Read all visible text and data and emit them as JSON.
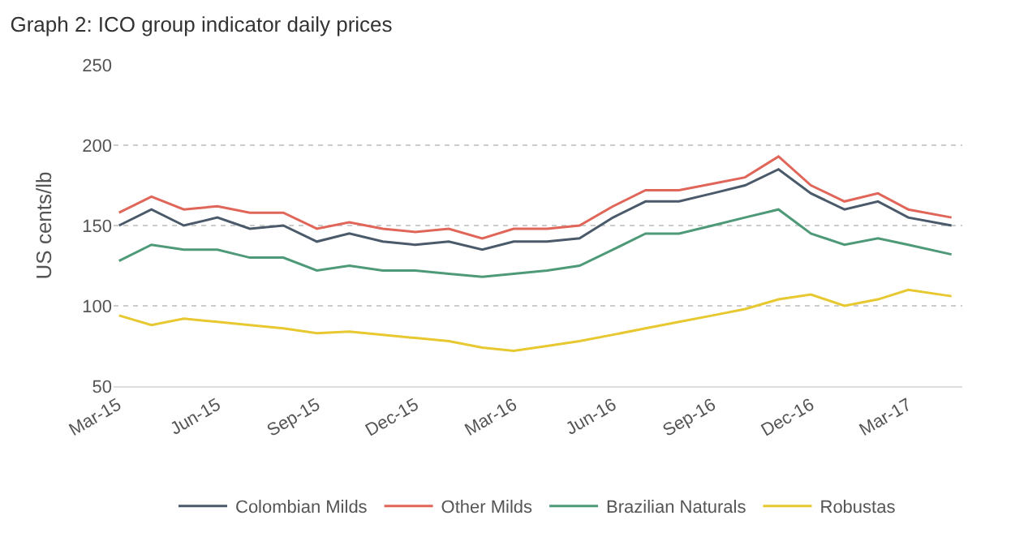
{
  "chart_data": {
    "type": "line",
    "title": "Graph 2: ICO group indicator daily prices",
    "ylabel": "US cents/lb",
    "x": [
      "2015-03-02",
      "2015-04-01",
      "2015-05-01",
      "2015-06-01",
      "2015-07-01",
      "2015-08-01",
      "2015-09-01",
      "2015-10-01",
      "2015-11-01",
      "2015-12-01",
      "2016-01-01",
      "2016-02-01",
      "2016-03-01",
      "2016-04-01",
      "2016-05-01",
      "2016-06-01",
      "2016-07-01",
      "2016-08-01",
      "2016-09-01",
      "2016-10-01",
      "2016-11-01",
      "2016-12-01",
      "2017-01-01",
      "2017-02-01",
      "2017-03-01",
      "2017-04-10"
    ],
    "series": [
      {
        "name": "Colombian Milds",
        "color": "#4a5a6a",
        "values": [
          150,
          160,
          150,
          155,
          148,
          150,
          140,
          145,
          140,
          138,
          140,
          135,
          140,
          140,
          142,
          155,
          165,
          165,
          170,
          175,
          185,
          170,
          160,
          165,
          155,
          150
        ]
      },
      {
        "name": "Other Milds",
        "color": "#e0665a",
        "values": [
          158,
          168,
          160,
          162,
          158,
          158,
          148,
          152,
          148,
          146,
          148,
          142,
          148,
          148,
          150,
          162,
          172,
          172,
          176,
          180,
          193,
          175,
          165,
          170,
          160,
          155
        ]
      },
      {
        "name": "Brazilian Naturals",
        "color": "#4e9a78",
        "values": [
          128,
          138,
          135,
          135,
          130,
          130,
          122,
          125,
          122,
          122,
          120,
          118,
          120,
          122,
          125,
          135,
          145,
          145,
          150,
          155,
          160,
          145,
          138,
          142,
          138,
          132
        ]
      },
      {
        "name": "Robustas",
        "color": "#e8c830",
        "values": [
          94,
          88,
          92,
          90,
          88,
          86,
          83,
          84,
          82,
          80,
          78,
          74,
          72,
          75,
          78,
          82,
          86,
          90,
          94,
          98,
          104,
          107,
          100,
          104,
          110,
          106
        ]
      }
    ],
    "xlim": [
      "2015-02-25",
      "2017-04-20"
    ],
    "xticks": [
      {
        "value": "2015-03-01",
        "label": "Mar-15"
      },
      {
        "value": "2015-06-01",
        "label": "Jun-15"
      },
      {
        "value": "2015-09-01",
        "label": "Sep-15"
      },
      {
        "value": "2015-12-01",
        "label": "Dec-15"
      },
      {
        "value": "2016-03-01",
        "label": "Mar-16"
      },
      {
        "value": "2016-06-01",
        "label": "Jun-16"
      },
      {
        "value": "2016-09-01",
        "label": "Sep-16"
      },
      {
        "value": "2016-12-01",
        "label": "Dec-16"
      },
      {
        "value": "2017-03-01",
        "label": "Mar-17"
      }
    ],
    "ylim": [
      50,
      250
    ],
    "yticks": [
      50,
      100,
      150,
      200,
      250
    ],
    "grid": "y",
    "legend": "bottom",
    "marker": "none",
    "line_style": "solid"
  }
}
